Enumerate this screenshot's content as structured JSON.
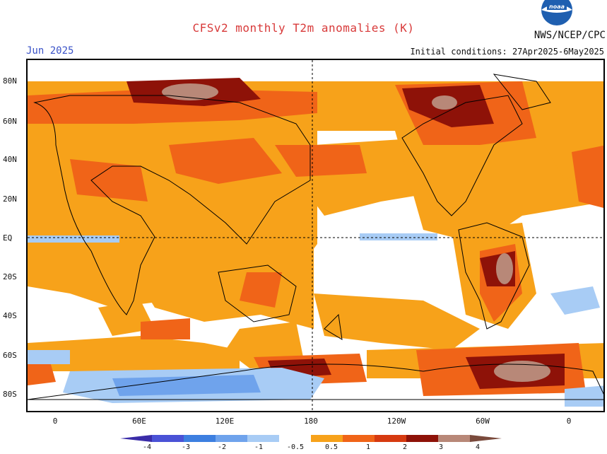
{
  "header": {
    "title": "CFSv2 monthly T2m anomalies (K)",
    "month": "Jun 2025",
    "initial_conditions": "Initial conditions: 27Apr2025-6May2025",
    "agency": "NWS/NCEP/CPC",
    "logo_text": "noaa"
  },
  "axes": {
    "lat_labels": [
      "80N",
      "60N",
      "40N",
      "20N",
      "EQ",
      "20S",
      "40S",
      "60S",
      "80S"
    ],
    "lon_labels": [
      "0",
      "60E",
      "120E",
      "180",
      "120W",
      "60W",
      "0"
    ]
  },
  "colorbar": {
    "ticks": [
      "-4",
      "-3",
      "-2",
      "-1",
      "-0.5",
      "0.5",
      "1",
      "2",
      "3",
      "4"
    ],
    "colors": [
      "#3a2ca8",
      "#4a52d6",
      "#3d7fe0",
      "#6fa3ec",
      "#a8ccf5",
      "#ffffff",
      "#f7a21a",
      "#f06418",
      "#d63a10",
      "#8e1208",
      "#b88878",
      "#7a4a3c"
    ]
  },
  "colors": {
    "title": "#d83a3a",
    "month": "#3a52c8",
    "noaa_blue": "#1f5fb0"
  }
}
